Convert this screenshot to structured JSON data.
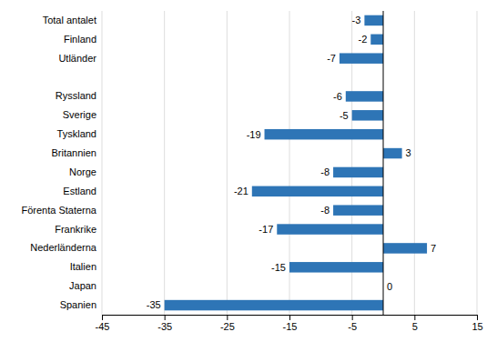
{
  "chart_data": {
    "type": "bar",
    "orientation": "horizontal",
    "categories": [
      "Total antalet",
      "Finland",
      "Utländer",
      null,
      "Ryssland",
      "Sverige",
      "Tyskland",
      "Britannien",
      "Norge",
      "Estland",
      "Förenta Staterna",
      "Frankrike",
      "Nederländerna",
      "Italien",
      "Japan",
      "Spanien"
    ],
    "values": [
      -3,
      -2,
      -7,
      null,
      -6,
      -5,
      -19,
      3,
      -8,
      -21,
      -8,
      -17,
      7,
      -15,
      0,
      -35
    ],
    "color": "#2E75B6",
    "xlim": [
      -45,
      15
    ],
    "xticks": [
      -45,
      -35,
      -25,
      -15,
      -5,
      5,
      15
    ],
    "grid": true,
    "data_labels": true
  }
}
